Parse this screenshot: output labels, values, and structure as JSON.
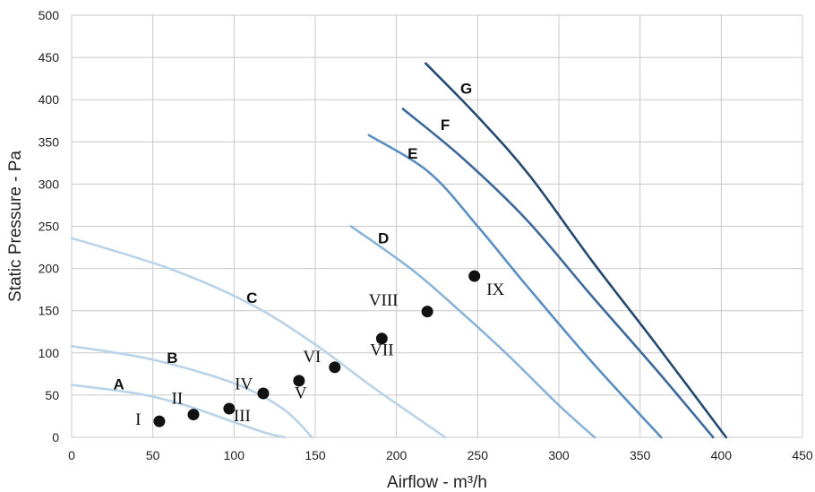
{
  "chart_data": {
    "type": "line",
    "xlabel": "Airflow - m³/h",
    "ylabel": "Static Pressure - Pa",
    "xlim": [
      0,
      450
    ],
    "ylim": [
      0,
      500
    ],
    "xticks": [
      "0",
      "50",
      "100",
      "150",
      "200",
      "250",
      "300",
      "350",
      "400",
      "450"
    ],
    "yticks": [
      "0",
      "50",
      "100",
      "150",
      "200",
      "250",
      "300",
      "350",
      "400",
      "450",
      "500"
    ],
    "grid": true,
    "series": [
      {
        "name": "A",
        "color": "#b9d3e9",
        "label_at": [
          29,
          57
        ],
        "points": [
          [
            0,
            62
          ],
          [
            40,
            52
          ],
          [
            70,
            38
          ],
          [
            100,
            18
          ],
          [
            120,
            5
          ],
          [
            131,
            0
          ]
        ]
      },
      {
        "name": "B",
        "color": "#b9d3e9",
        "label_at": [
          62,
          88
        ],
        "points": [
          [
            0,
            108
          ],
          [
            50,
            92
          ],
          [
            100,
            64
          ],
          [
            130,
            34
          ],
          [
            148,
            0
          ]
        ]
      },
      {
        "name": "C",
        "color": "#b9d3e9",
        "label_at": [
          111,
          159
        ],
        "points": [
          [
            0,
            236
          ],
          [
            60,
            200
          ],
          [
            110,
            158
          ],
          [
            150,
            110
          ],
          [
            185,
            60
          ],
          [
            215,
            20
          ],
          [
            230,
            0
          ]
        ]
      },
      {
        "name": "D",
        "color": "#8ab4da",
        "label_at": [
          192,
          230
        ],
        "points": [
          [
            172,
            250
          ],
          [
            210,
            198
          ],
          [
            240,
            148
          ],
          [
            270,
            95
          ],
          [
            300,
            38
          ],
          [
            322,
            0
          ]
        ]
      },
      {
        "name": "E",
        "color": "#5b8fc2",
        "label_at": [
          210,
          330
        ],
        "points": [
          [
            183,
            358
          ],
          [
            220,
            314
          ],
          [
            250,
            250
          ],
          [
            280,
            180
          ],
          [
            320,
            90
          ],
          [
            363,
            0
          ]
        ]
      },
      {
        "name": "F",
        "color": "#3d6a9a",
        "label_at": [
          230,
          364
        ],
        "points": [
          [
            204,
            389
          ],
          [
            240,
            332
          ],
          [
            280,
            258
          ],
          [
            320,
            168
          ],
          [
            360,
            80
          ],
          [
            395,
            0
          ]
        ]
      },
      {
        "name": "G",
        "color": "#244a72",
        "label_at": [
          243,
          407
        ],
        "points": [
          [
            218,
            443
          ],
          [
            250,
            380
          ],
          [
            282,
            310
          ],
          [
            320,
            210
          ],
          [
            360,
            110
          ],
          [
            403,
            0
          ]
        ]
      }
    ],
    "markers": [
      {
        "label": "I",
        "x": 54,
        "y": 19,
        "label_at": [
          41,
          15
        ]
      },
      {
        "name_label": "II",
        "label": "II",
        "x": 75,
        "y": 27,
        "label_at": [
          65,
          40
        ]
      },
      {
        "label": "III",
        "x": 97,
        "y": 34,
        "label_at": [
          105,
          19
        ]
      },
      {
        "label": "IV",
        "x": 118,
        "y": 52,
        "label_at": [
          106,
          57
        ]
      },
      {
        "label": "V",
        "x": 140,
        "y": 67,
        "label_at": [
          141,
          46
        ]
      },
      {
        "label": "VI",
        "x": 162,
        "y": 83,
        "label_at": [
          148,
          89
        ]
      },
      {
        "label": "VII",
        "x": 191,
        "y": 117,
        "label_at": [
          191,
          97
        ]
      },
      {
        "label": "VIII",
        "x": 219,
        "y": 149,
        "label_at": [
          192,
          156
        ]
      },
      {
        "label": "IX",
        "x": 248,
        "y": 191,
        "label_at": [
          261,
          169
        ]
      }
    ]
  }
}
